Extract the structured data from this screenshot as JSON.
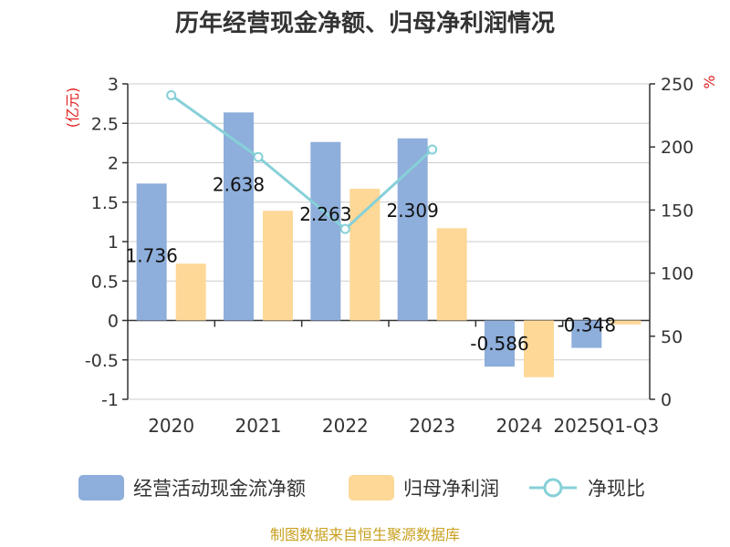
{
  "chart_data": {
    "type": "bar",
    "title": "历年经营现金净额、归母净利润情况",
    "categories": [
      "2020",
      "2021",
      "2022",
      "2023",
      "2024",
      "2025Q1-Q3"
    ],
    "series": [
      {
        "name": "经营活动现金流净额",
        "kind": "bar",
        "axis": "left",
        "color": "#8eaedb",
        "values": [
          1.736,
          2.638,
          2.263,
          2.309,
          -0.586,
          -0.348
        ],
        "labels": [
          "1.736",
          "2.638",
          "2.263",
          "2.309",
          "-0.586",
          "-0.348"
        ]
      },
      {
        "name": "归母净利润",
        "kind": "bar",
        "axis": "left",
        "color": "#fdd897",
        "values": [
          0.72,
          1.39,
          1.67,
          1.17,
          -0.72,
          -0.05
        ]
      },
      {
        "name": "净现比",
        "kind": "line",
        "axis": "right",
        "color": "#86d0d8",
        "values": [
          241,
          192,
          135,
          198,
          null,
          null
        ]
      }
    ],
    "y_left": {
      "label": "(亿元)",
      "min": -1,
      "max": 3,
      "ticks": [
        "3",
        "2.5",
        "2",
        "1.5",
        "1",
        "0.5",
        "0",
        "-0.5",
        "-1"
      ]
    },
    "y_right": {
      "label": "%",
      "min": 0,
      "max": 250,
      "ticks": [
        "250",
        "200",
        "150",
        "100",
        "50",
        "0"
      ]
    },
    "grid": true,
    "legend_position": "bottom"
  },
  "source": "制图数据来自恒生聚源数据库"
}
